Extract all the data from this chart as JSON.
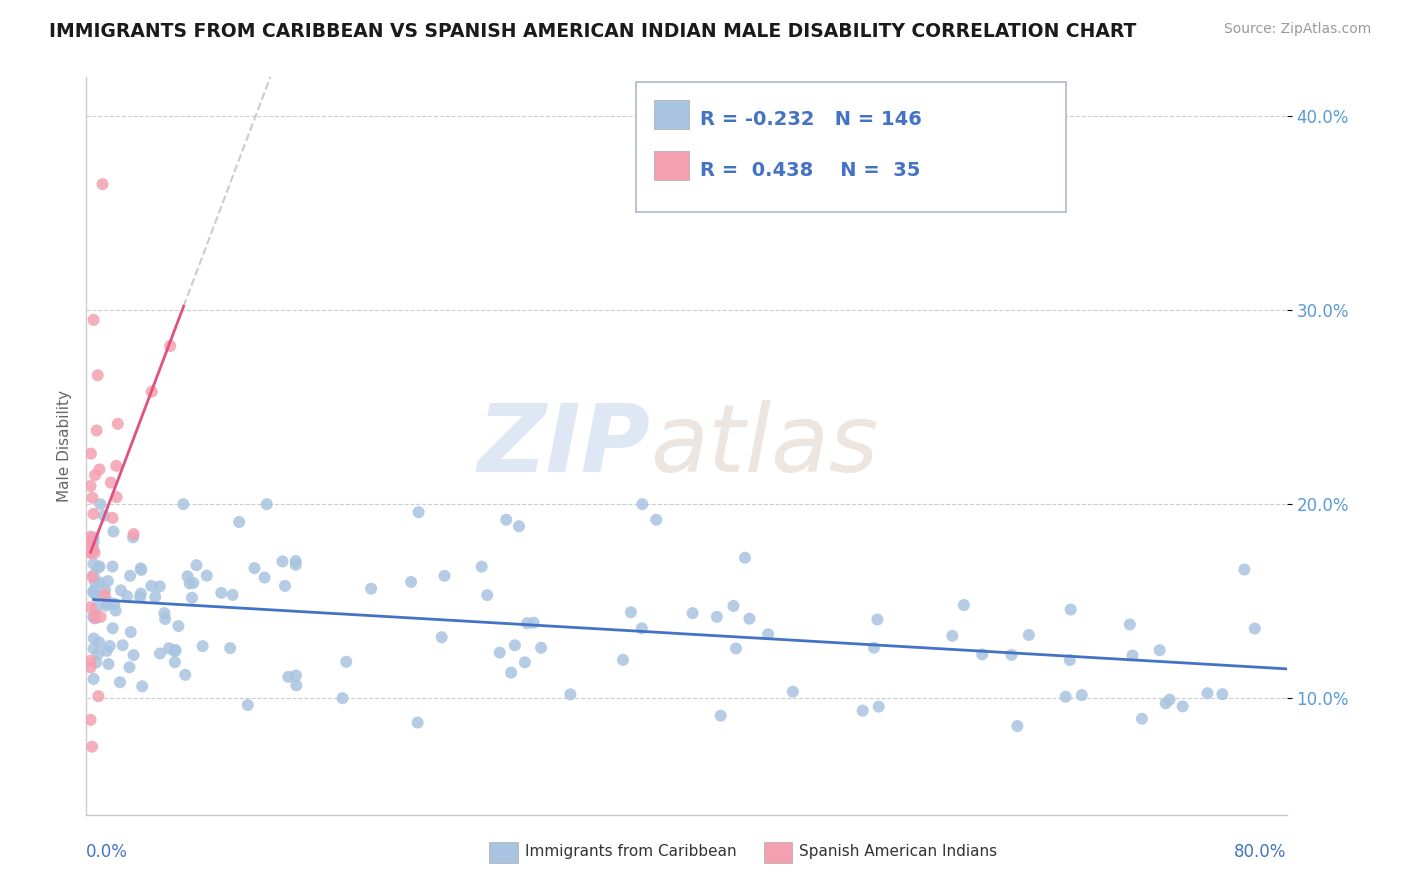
{
  "title": "IMMIGRANTS FROM CARIBBEAN VS SPANISH AMERICAN INDIAN MALE DISABILITY CORRELATION CHART",
  "source": "Source: ZipAtlas.com",
  "ylabel": "Male Disability",
  "legend_label1": "Immigrants from Caribbean",
  "legend_label2": "Spanish American Indians",
  "r1": -0.232,
  "n1": 146,
  "r2": 0.438,
  "n2": 35,
  "color1": "#a8c4e0",
  "color2": "#f4a0b0",
  "trendline1_color": "#4472c4",
  "trendline2_color": "#e05080",
  "trendline1_dash": "solid",
  "trendline2_dash": "solid",
  "background": "#ffffff",
  "xlim": [
    0.0,
    0.8
  ],
  "ylim": [
    0.04,
    0.42
  ],
  "yticks": [
    0.1,
    0.2,
    0.3,
    0.4
  ],
  "ytick_labels": [
    "10.0%",
    "20.0%",
    "30.0%",
    "40.0%"
  ],
  "seed1": 42,
  "seed2": 99
}
